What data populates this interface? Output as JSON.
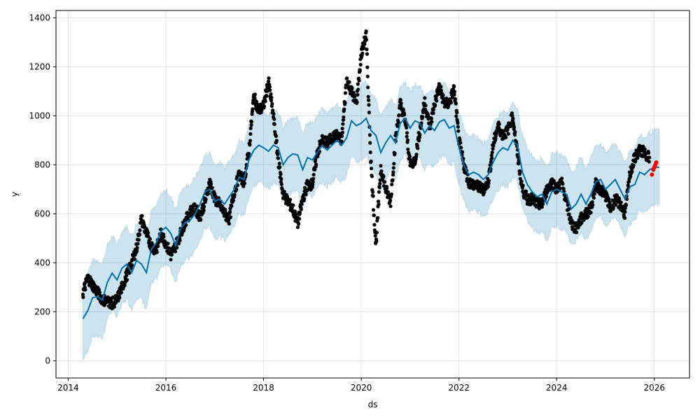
{
  "chart_data": {
    "type": "line",
    "title": "",
    "xlabel": "ds",
    "ylabel": "y",
    "xlim": [
      2013.75,
      2026.72
    ],
    "ylim": [
      -70,
      1430
    ],
    "x_ticks": [
      2014,
      2016,
      2018,
      2020,
      2022,
      2024,
      2026
    ],
    "x_tick_labels": [
      "2014",
      "2016",
      "2018",
      "2020",
      "2022",
      "2024",
      "2026"
    ],
    "y_ticks": [
      0,
      200,
      400,
      600,
      800,
      1000,
      1200,
      1400
    ],
    "y_tick_labels": [
      "0",
      "200",
      "400",
      "600",
      "800",
      "1000",
      "1200",
      "1400"
    ],
    "grid": true,
    "colors": {
      "forecast_line": "#0072B2",
      "uncertainty_band": "#0072B2",
      "observed_points": "#000000",
      "recent_points": "#ff0000"
    },
    "series": [
      {
        "role": "forecast",
        "x": [
          2014.3,
          2014.4,
          2014.5,
          2014.6,
          2014.7,
          2014.8,
          2014.9,
          2015.0,
          2015.1,
          2015.2,
          2015.3,
          2015.4,
          2015.5,
          2015.6,
          2015.7,
          2015.8,
          2015.9,
          2016.0,
          2016.1,
          2016.2,
          2016.3,
          2016.4,
          2016.5,
          2016.6,
          2016.7,
          2016.8,
          2016.9,
          2017.0,
          2017.1,
          2017.2,
          2017.3,
          2017.4,
          2017.5,
          2017.6,
          2017.7,
          2017.8,
          2017.9,
          2018.0,
          2018.1,
          2018.2,
          2018.3,
          2018.4,
          2018.5,
          2018.6,
          2018.7,
          2018.8,
          2018.9,
          2019.0,
          2019.1,
          2019.2,
          2019.3,
          2019.4,
          2019.5,
          2019.6,
          2019.7,
          2019.8,
          2019.9,
          2020.0,
          2020.1,
          2020.2,
          2020.3,
          2020.4,
          2020.5,
          2020.6,
          2020.7,
          2020.8,
          2020.9,
          2021.0,
          2021.1,
          2021.2,
          2021.3,
          2021.4,
          2021.5,
          2021.6,
          2021.7,
          2021.8,
          2021.9,
          2022.0,
          2022.1,
          2022.2,
          2022.3,
          2022.4,
          2022.5,
          2022.6,
          2022.7,
          2022.8,
          2022.9,
          2023.0,
          2023.1,
          2023.2,
          2023.3,
          2023.4,
          2023.5,
          2023.6,
          2023.7,
          2023.8,
          2023.9,
          2024.0,
          2024.1,
          2024.2,
          2024.3,
          2024.4,
          2024.5,
          2024.6,
          2024.7,
          2024.8,
          2024.9,
          2025.0,
          2025.1,
          2025.2,
          2025.3,
          2025.4,
          2025.5,
          2025.6,
          2025.7,
          2025.8,
          2025.9,
          2026.0,
          2026.1
        ],
        "yhat": [
          172,
          205,
          258,
          262,
          248,
          320,
          358,
          330,
          378,
          395,
          360,
          410,
          395,
          360,
          455,
          480,
          530,
          545,
          520,
          470,
          540,
          565,
          575,
          600,
          640,
          690,
          700,
          650,
          660,
          640,
          670,
          700,
          750,
          740,
          820,
          860,
          880,
          870,
          855,
          880,
          870,
          800,
          830,
          845,
          840,
          780,
          830,
          820,
          850,
          880,
          860,
          880,
          900,
          880,
          910,
          980,
          960,
          970,
          990,
          940,
          920,
          850,
          890,
          920,
          890,
          970,
          990,
          950,
          980,
          970,
          930,
          960,
          940,
          975,
          985,
          950,
          960,
          870,
          800,
          760,
          770,
          760,
          740,
          760,
          810,
          850,
          870,
          860,
          900,
          880,
          770,
          720,
          690,
          670,
          680,
          640,
          690,
          700,
          690,
          680,
          620,
          640,
          680,
          640,
          680,
          730,
          740,
          700,
          720,
          740,
          700,
          660,
          710,
          720,
          770,
          760,
          780,
          790,
          790
        ],
        "yhat_lower": [
          5,
          40,
          100,
          100,
          90,
          170,
          210,
          180,
          230,
          250,
          210,
          260,
          250,
          210,
          310,
          330,
          380,
          400,
          370,
          320,
          390,
          410,
          420,
          450,
          490,
          540,
          550,
          500,
          510,
          490,
          520,
          550,
          600,
          590,
          670,
          710,
          730,
          720,
          700,
          730,
          720,
          650,
          680,
          690,
          690,
          630,
          680,
          670,
          700,
          730,
          710,
          730,
          750,
          730,
          760,
          830,
          810,
          820,
          840,
          790,
          770,
          700,
          740,
          770,
          740,
          820,
          840,
          800,
          830,
          820,
          780,
          810,
          790,
          825,
          835,
          800,
          810,
          720,
          650,
          610,
          620,
          610,
          590,
          610,
          660,
          700,
          720,
          710,
          750,
          730,
          620,
          570,
          540,
          520,
          530,
          490,
          540,
          550,
          540,
          530,
          470,
          490,
          530,
          490,
          530,
          580,
          590,
          550,
          570,
          590,
          550,
          510,
          560,
          570,
          620,
          610,
          630,
          640,
          640
        ],
        "yhat_upper": [
          320,
          360,
          410,
          410,
          400,
          470,
          510,
          480,
          530,
          550,
          510,
          560,
          550,
          510,
          610,
          630,
          680,
          700,
          670,
          620,
          690,
          710,
          720,
          750,
          790,
          840,
          850,
          800,
          810,
          790,
          820,
          850,
          900,
          890,
          970,
          1010,
          1030,
          1020,
          1000,
          1030,
          1020,
          950,
          980,
          990,
          990,
          930,
          980,
          970,
          1000,
          1030,
          1010,
          1030,
          1050,
          1030,
          1060,
          1130,
          1110,
          1120,
          1140,
          1090,
          1070,
          1000,
          1040,
          1070,
          1040,
          1120,
          1140,
          1100,
          1130,
          1120,
          1080,
          1110,
          1090,
          1125,
          1135,
          1100,
          1110,
          1020,
          950,
          910,
          920,
          910,
          890,
          910,
          960,
          1000,
          1020,
          1010,
          1050,
          1030,
          920,
          870,
          840,
          820,
          830,
          790,
          840,
          850,
          840,
          830,
          770,
          790,
          830,
          790,
          830,
          880,
          890,
          850,
          870,
          890,
          850,
          810,
          860,
          870,
          920,
          910,
          930,
          940,
          940
        ]
      },
      {
        "role": "observed",
        "x": [
          2014.3,
          2014.4,
          2014.5,
          2014.6,
          2014.7,
          2014.8,
          2014.9,
          2015.0,
          2015.1,
          2015.2,
          2015.3,
          2015.4,
          2015.5,
          2015.6,
          2015.7,
          2015.8,
          2015.9,
          2016.0,
          2016.1,
          2016.2,
          2016.3,
          2016.4,
          2016.5,
          2016.6,
          2016.7,
          2016.8,
          2016.9,
          2017.0,
          2017.1,
          2017.2,
          2017.3,
          2017.4,
          2017.5,
          2017.6,
          2017.7,
          2017.8,
          2017.9,
          2018.0,
          2018.1,
          2018.2,
          2018.3,
          2018.4,
          2018.5,
          2018.6,
          2018.7,
          2018.8,
          2018.9,
          2019.0,
          2019.1,
          2019.2,
          2019.3,
          2019.4,
          2019.5,
          2019.6,
          2019.7,
          2019.8,
          2019.9,
          2020.0,
          2020.1,
          2020.2,
          2020.3,
          2020.4,
          2020.5,
          2020.6,
          2020.7,
          2020.8,
          2020.9,
          2021.0,
          2021.1,
          2021.2,
          2021.3,
          2021.4,
          2021.5,
          2021.6,
          2021.7,
          2021.8,
          2021.9,
          2022.0,
          2022.1,
          2022.2,
          2022.3,
          2022.4,
          2022.5,
          2022.6,
          2022.7,
          2022.8,
          2022.9,
          2023.0,
          2023.1,
          2023.2,
          2023.3,
          2023.4,
          2023.5,
          2023.6,
          2023.7,
          2023.8,
          2023.9,
          2024.0,
          2024.1,
          2024.2,
          2024.3,
          2024.4,
          2024.5,
          2024.6,
          2024.7,
          2024.8,
          2024.9,
          2025.0,
          2025.1,
          2025.2,
          2025.3,
          2025.4,
          2025.5,
          2025.6,
          2025.7,
          2025.8,
          2025.9
        ],
        "y": [
          275,
          340,
          310,
          280,
          250,
          245,
          235,
          250,
          300,
          350,
          400,
          460,
          580,
          520,
          470,
          450,
          520,
          480,
          430,
          470,
          520,
          570,
          610,
          620,
          590,
          650,
          730,
          660,
          640,
          600,
          580,
          690,
          760,
          730,
          860,
          1080,
          1020,
          1040,
          1140,
          1000,
          820,
          680,
          650,
          620,
          560,
          660,
          720,
          720,
          850,
          900,
          890,
          910,
          920,
          900,
          1150,
          1100,
          1050,
          1250,
          1330,
          800,
          470,
          790,
          700,
          650,
          900,
          1050,
          980,
          800,
          820,
          940,
          1060,
          950,
          1050,
          1120,
          1050,
          1050,
          1110,
          900,
          800,
          730,
          720,
          710,
          700,
          730,
          880,
          960,
          920,
          940,
          1000,
          840,
          700,
          660,
          660,
          640,
          640,
          700,
          730,
          700,
          730,
          650,
          560,
          540,
          580,
          600,
          620,
          720,
          700,
          680,
          620,
          660,
          640,
          600,
          760,
          830,
          860,
          850,
          830
        ],
        "point_count": 117
      },
      {
        "role": "recent",
        "x": [
          2025.95,
          2025.98,
          2026.0,
          2026.02,
          2026.04
        ],
        "y": [
          760,
          780,
          790,
          800,
          810
        ]
      }
    ]
  }
}
